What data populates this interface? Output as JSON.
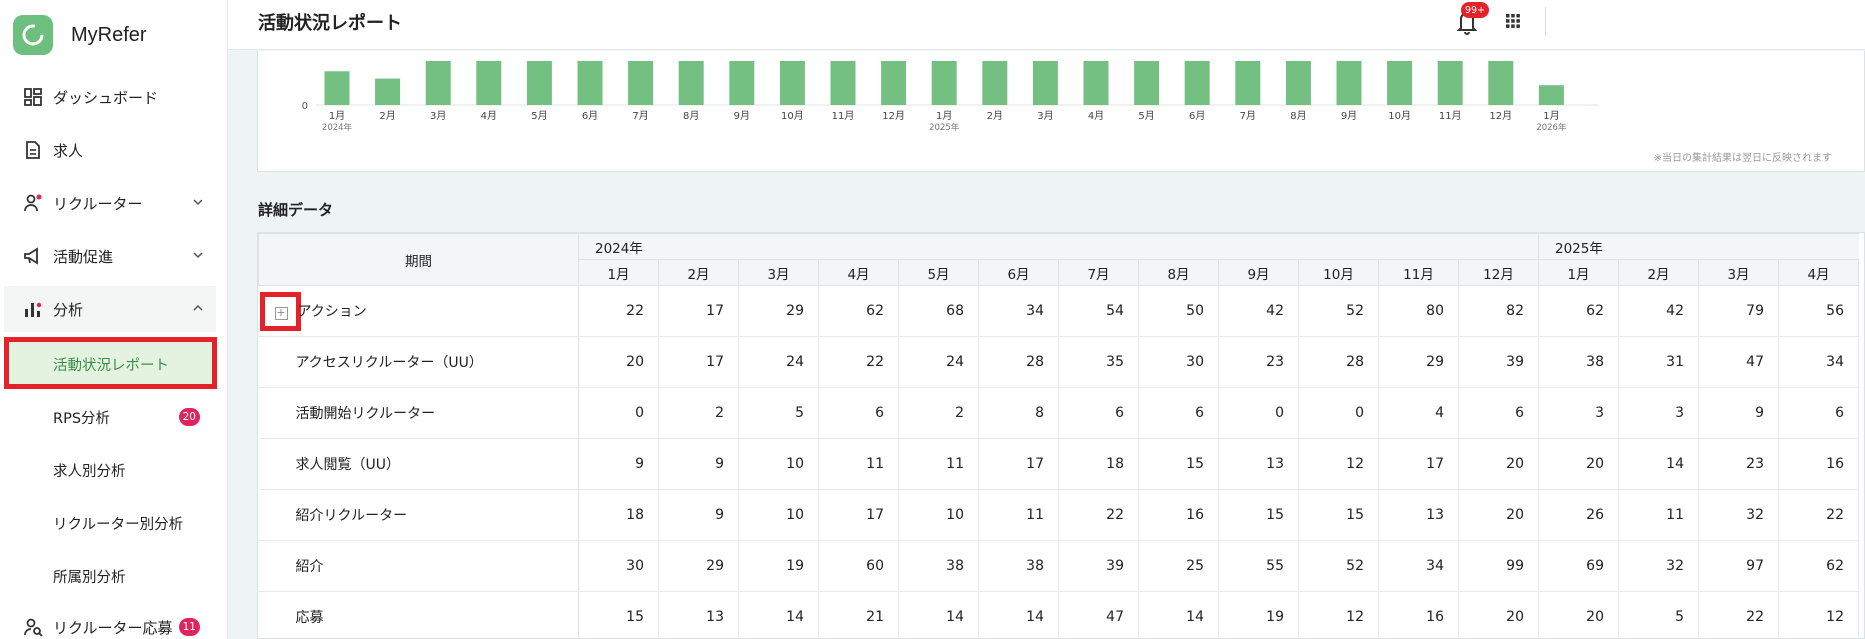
{
  "brand": {
    "name": "MyRefer"
  },
  "sidebar": {
    "items": [
      {
        "label": "ダッシュボード",
        "icon": "dashboard-icon"
      },
      {
        "label": "求人",
        "icon": "document-icon"
      },
      {
        "label": "リクルーター",
        "icon": "recruiter-icon"
      },
      {
        "label": "活動促進",
        "icon": "megaphone-icon"
      },
      {
        "label": "分析",
        "icon": "bar-chart-icon"
      }
    ],
    "sub_items": [
      {
        "label": "活動状況レポート"
      },
      {
        "label": "RPS分析",
        "badge": "20"
      },
      {
        "label": "求人別分析"
      },
      {
        "label": "リクルーター別分析"
      },
      {
        "label": "所属別分析"
      }
    ],
    "bottom_item": {
      "label": "リクルーター応募",
      "badge": "11",
      "icon": "recruiter-search-icon"
    }
  },
  "header": {
    "title": "活動状況レポート",
    "notification_badge": "99+"
  },
  "chart_data": {
    "type": "bar",
    "color": "#74c083",
    "categories": [
      "1月",
      "2月",
      "3月",
      "4月",
      "5月",
      "6月",
      "7月",
      "8月",
      "9月",
      "10月",
      "11月",
      "12月",
      "1月",
      "2月",
      "3月",
      "4月",
      "5月",
      "6月",
      "7月",
      "8月",
      "9月",
      "10月",
      "11月",
      "12月",
      "1月"
    ],
    "year_labels": {
      "0": "2024年",
      "12": "2025年",
      "24": "2026年"
    },
    "values": [
      46,
      36,
      60,
      60,
      60,
      60,
      60,
      60,
      60,
      60,
      60,
      60,
      60,
      60,
      60,
      60,
      60,
      60,
      60,
      60,
      60,
      60,
      60,
      60,
      27
    ],
    "y_ticks": [
      "0"
    ],
    "note": "※当日の集計結果は翌日に反映されます"
  },
  "detail": {
    "title": "詳細データ",
    "period_header": "期間",
    "years": [
      {
        "label": "2024年",
        "span": 12
      },
      {
        "label": "2025年",
        "span": 4
      }
    ],
    "months": [
      "1月",
      "2月",
      "3月",
      "4月",
      "5月",
      "6月",
      "7月",
      "8月",
      "9月",
      "10月",
      "11月",
      "12月",
      "1月",
      "2月",
      "3月",
      "4月"
    ],
    "rows": [
      {
        "label": "アクション",
        "values": [
          22,
          17,
          29,
          62,
          68,
          34,
          54,
          50,
          42,
          52,
          80,
          82,
          62,
          42,
          79,
          56
        ]
      },
      {
        "label": "アクセスリクルーター（UU）",
        "values": [
          20,
          17,
          24,
          22,
          24,
          28,
          35,
          30,
          23,
          28,
          29,
          39,
          38,
          31,
          47,
          34
        ]
      },
      {
        "label": "活動開始リクルーター",
        "values": [
          0,
          2,
          5,
          6,
          2,
          8,
          6,
          6,
          0,
          0,
          4,
          6,
          3,
          3,
          9,
          6
        ]
      },
      {
        "label": "求人閲覧（UU）",
        "values": [
          9,
          9,
          10,
          11,
          11,
          17,
          18,
          15,
          13,
          12,
          17,
          20,
          20,
          14,
          23,
          16
        ]
      },
      {
        "label": "紹介リクルーター",
        "values": [
          18,
          9,
          10,
          17,
          10,
          11,
          22,
          16,
          15,
          15,
          13,
          20,
          26,
          11,
          32,
          22
        ]
      },
      {
        "label": "紹介",
        "values": [
          30,
          29,
          19,
          60,
          38,
          38,
          39,
          25,
          55,
          52,
          34,
          99,
          69,
          32,
          97,
          62
        ]
      },
      {
        "label": "応募",
        "values": [
          15,
          13,
          14,
          21,
          14,
          14,
          47,
          14,
          19,
          12,
          16,
          20,
          20,
          5,
          22,
          12
        ]
      }
    ]
  }
}
